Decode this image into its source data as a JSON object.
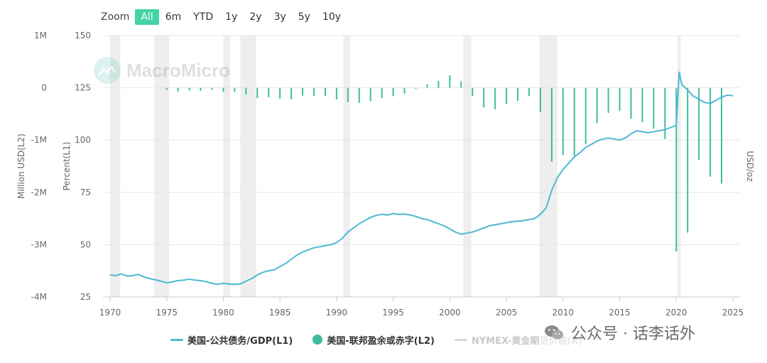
{
  "zoom": {
    "label": "Zoom",
    "buttons": [
      "All",
      "6m",
      "YTD",
      "1y",
      "2y",
      "3y",
      "5y",
      "10y"
    ],
    "active": "All",
    "active_color": "#43d3a6"
  },
  "watermark": {
    "brand": "MacroMicro",
    "account": "公众号 · 话李话外"
  },
  "chart_data": {
    "type": "line",
    "x_range": [
      1970,
      2025.5
    ],
    "x_ticks": [
      1970,
      1975,
      1980,
      1985,
      1990,
      1995,
      2000,
      2005,
      2010,
      2015,
      2020,
      2025
    ],
    "y_left_outer": {
      "label": "Million USD(L2)",
      "ticks": [
        "1M",
        "0",
        "-1M",
        "-2M",
        "-3M",
        "-4M"
      ],
      "range": [
        -4000000,
        1000000
      ]
    },
    "y_left_inner": {
      "label": "Percent(L1)",
      "ticks": [
        150,
        125,
        100,
        75,
        50,
        25
      ],
      "range": [
        25,
        150
      ]
    },
    "y_right": {
      "label": "USD/oz"
    },
    "recessions": [
      [
        1970.0,
        1970.9
      ],
      [
        1973.9,
        1975.2
      ],
      [
        1980.0,
        1980.6
      ],
      [
        1981.5,
        1982.9
      ],
      [
        1990.6,
        1991.2
      ],
      [
        2001.2,
        2001.9
      ],
      [
        2007.9,
        2009.5
      ],
      [
        2020.1,
        2020.4
      ]
    ],
    "series": [
      {
        "name": "美国-公共债务/GDP(L1)",
        "axis": "L1",
        "style": "line",
        "color": "#4db8d4",
        "points": [
          [
            1970.0,
            35.5
          ],
          [
            1970.5,
            35.2
          ],
          [
            1971.0,
            36.0
          ],
          [
            1971.5,
            35.0
          ],
          [
            1972.0,
            35.2
          ],
          [
            1972.5,
            35.8
          ],
          [
            1973.0,
            34.5
          ],
          [
            1973.5,
            33.8
          ],
          [
            1974.0,
            33.2
          ],
          [
            1974.5,
            32.5
          ],
          [
            1975.0,
            31.8
          ],
          [
            1975.5,
            32.2
          ],
          [
            1976.0,
            32.8
          ],
          [
            1976.5,
            33.0
          ],
          [
            1977.0,
            33.5
          ],
          [
            1977.5,
            33.0
          ],
          [
            1978.0,
            32.8
          ],
          [
            1978.5,
            32.2
          ],
          [
            1979.0,
            31.5
          ],
          [
            1979.5,
            31.0
          ],
          [
            1980.0,
            31.5
          ],
          [
            1980.5,
            31.2
          ],
          [
            1981.0,
            31.0
          ],
          [
            1981.5,
            31.2
          ],
          [
            1982.0,
            32.5
          ],
          [
            1982.5,
            33.8
          ],
          [
            1983.0,
            35.5
          ],
          [
            1983.5,
            36.8
          ],
          [
            1984.0,
            37.5
          ],
          [
            1984.5,
            38.0
          ],
          [
            1985.0,
            39.5
          ],
          [
            1985.5,
            41.0
          ],
          [
            1986.0,
            43.0
          ],
          [
            1986.5,
            45.0
          ],
          [
            1987.0,
            46.5
          ],
          [
            1987.5,
            47.5
          ],
          [
            1988.0,
            48.5
          ],
          [
            1988.5,
            49.0
          ],
          [
            1989.0,
            49.5
          ],
          [
            1989.5,
            50.0
          ],
          [
            1990.0,
            51.0
          ],
          [
            1990.5,
            53.0
          ],
          [
            1991.0,
            56.0
          ],
          [
            1991.5,
            58.0
          ],
          [
            1992.0,
            60.0
          ],
          [
            1992.5,
            61.5
          ],
          [
            1993.0,
            63.0
          ],
          [
            1993.5,
            64.0
          ],
          [
            1994.0,
            64.5
          ],
          [
            1994.5,
            64.2
          ],
          [
            1995.0,
            64.8
          ],
          [
            1995.5,
            64.5
          ],
          [
            1996.0,
            64.6
          ],
          [
            1996.5,
            64.2
          ],
          [
            1997.0,
            63.5
          ],
          [
            1997.5,
            62.5
          ],
          [
            1998.0,
            62.0
          ],
          [
            1998.5,
            61.0
          ],
          [
            1999.0,
            60.0
          ],
          [
            1999.5,
            59.0
          ],
          [
            2000.0,
            57.5
          ],
          [
            2000.5,
            56.0
          ],
          [
            2001.0,
            55.0
          ],
          [
            2001.5,
            55.5
          ],
          [
            2002.0,
            56.0
          ],
          [
            2002.5,
            57.0
          ],
          [
            2003.0,
            58.0
          ],
          [
            2003.5,
            59.0
          ],
          [
            2004.0,
            59.5
          ],
          [
            2004.5,
            60.0
          ],
          [
            2005.0,
            60.5
          ],
          [
            2005.5,
            61.0
          ],
          [
            2006.0,
            61.2
          ],
          [
            2006.5,
            61.5
          ],
          [
            2007.0,
            62.0
          ],
          [
            2007.5,
            62.5
          ],
          [
            2008.0,
            64.5
          ],
          [
            2008.5,
            67.5
          ],
          [
            2009.0,
            76.0
          ],
          [
            2009.5,
            82.0
          ],
          [
            2010.0,
            86.0
          ],
          [
            2010.5,
            89.0
          ],
          [
            2011.0,
            92.0
          ],
          [
            2011.5,
            94.0
          ],
          [
            2012.0,
            96.5
          ],
          [
            2012.5,
            98.0
          ],
          [
            2013.0,
            99.5
          ],
          [
            2013.5,
            100.5
          ],
          [
            2014.0,
            101.0
          ],
          [
            2014.5,
            100.5
          ],
          [
            2015.0,
            100.0
          ],
          [
            2015.5,
            101.0
          ],
          [
            2016.0,
            103.0
          ],
          [
            2016.5,
            104.5
          ],
          [
            2017.0,
            104.0
          ],
          [
            2017.5,
            103.5
          ],
          [
            2018.0,
            104.0
          ],
          [
            2018.5,
            104.5
          ],
          [
            2019.0,
            105.0
          ],
          [
            2019.5,
            106.0
          ],
          [
            2020.0,
            107.0
          ],
          [
            2020.25,
            132.5
          ],
          [
            2020.5,
            126.5
          ],
          [
            2021.0,
            124.0
          ],
          [
            2021.5,
            121.0
          ],
          [
            2022.0,
            119.5
          ],
          [
            2022.5,
            118.0
          ],
          [
            2023.0,
            117.5
          ],
          [
            2023.5,
            119.0
          ],
          [
            2024.0,
            120.5
          ],
          [
            2024.5,
            121.5
          ],
          [
            2025.0,
            121.2
          ]
        ]
      },
      {
        "name": "美国-联邦盈余或赤字(L2)",
        "axis": "L2",
        "style": "bars",
        "color": "#3dbd9d",
        "points": [
          [
            1975.0,
            -40000
          ],
          [
            1976.0,
            -70000
          ],
          [
            1977.0,
            -50000
          ],
          [
            1978.0,
            -55000
          ],
          [
            1979.0,
            -40000
          ],
          [
            1980.0,
            -75000
          ],
          [
            1981.0,
            -80000
          ],
          [
            1982.0,
            -130000
          ],
          [
            1983.0,
            -200000
          ],
          [
            1984.0,
            -180000
          ],
          [
            1985.0,
            -210000
          ],
          [
            1986.0,
            -220000
          ],
          [
            1987.0,
            -150000
          ],
          [
            1988.0,
            -155000
          ],
          [
            1989.0,
            -150000
          ],
          [
            1990.0,
            -220000
          ],
          [
            1991.0,
            -270000
          ],
          [
            1992.0,
            -290000
          ],
          [
            1993.0,
            -255000
          ],
          [
            1994.0,
            -200000
          ],
          [
            1995.0,
            -160000
          ],
          [
            1996.0,
            -110000
          ],
          [
            1997.0,
            -20000
          ],
          [
            1998.0,
            70000
          ],
          [
            1999.0,
            130000
          ],
          [
            2000.0,
            240000
          ],
          [
            2001.0,
            120000
          ],
          [
            2002.0,
            -160000
          ],
          [
            2003.0,
            -375000
          ],
          [
            2004.0,
            -410000
          ],
          [
            2005.0,
            -310000
          ],
          [
            2006.0,
            -250000
          ],
          [
            2007.0,
            -160000
          ],
          [
            2008.0,
            -460000
          ],
          [
            2009.0,
            -1410000
          ],
          [
            2010.0,
            -1290000
          ],
          [
            2011.0,
            -1300000
          ],
          [
            2012.0,
            -1080000
          ],
          [
            2013.0,
            -680000
          ],
          [
            2014.0,
            -480000
          ],
          [
            2015.0,
            -440000
          ],
          [
            2016.0,
            -590000
          ],
          [
            2017.0,
            -660000
          ],
          [
            2018.0,
            -780000
          ],
          [
            2019.0,
            -980000
          ],
          [
            2020.0,
            -3130000
          ],
          [
            2021.0,
            -2770000
          ],
          [
            2022.0,
            -1380000
          ],
          [
            2023.0,
            -1700000
          ],
          [
            2024.0,
            -1830000
          ]
        ]
      },
      {
        "name": "NYMEX-黄金期货价格(R)",
        "axis": "R",
        "style": "hidden",
        "color": "#d8d8d8",
        "points": []
      }
    ]
  }
}
